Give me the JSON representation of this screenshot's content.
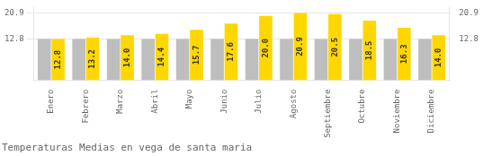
{
  "chart_data": {
    "type": "bar",
    "title": "Temperaturas Medias en vega de santa maria",
    "categories": [
      "Enero",
      "Febrero",
      "Marzo",
      "Abril",
      "Mayo",
      "Junio",
      "Julio",
      "Agosto",
      "Septiembre",
      "Octubre",
      "Noviembre",
      "Diciembre"
    ],
    "series": [
      {
        "color": "#BEBEBE",
        "values": [
          12.8,
          12.8,
          12.8,
          12.8,
          12.8,
          12.8,
          12.8,
          12.8,
          12.8,
          12.8,
          12.8,
          12.8
        ]
      },
      {
        "color": "#FFD700",
        "values": [
          12.8,
          13.2,
          14.0,
          14.4,
          15.7,
          17.6,
          20.0,
          20.9,
          20.5,
          18.5,
          16.3,
          14.0
        ],
        "data_labels": true,
        "value_labels": [
          "12.8",
          "13.2",
          "14.0",
          "14.4",
          "15.7",
          "17.6",
          "20.0",
          "20.9",
          "20.5",
          "18.5",
          "16.3",
          "14.0"
        ]
      }
    ],
    "ylim": [
      0,
      22.572
    ],
    "yticks": [
      12.8,
      20.9
    ],
    "y2lim": [
      0,
      22.572
    ],
    "y2ticks": [
      12.8,
      20.9
    ],
    "grid": true
  }
}
